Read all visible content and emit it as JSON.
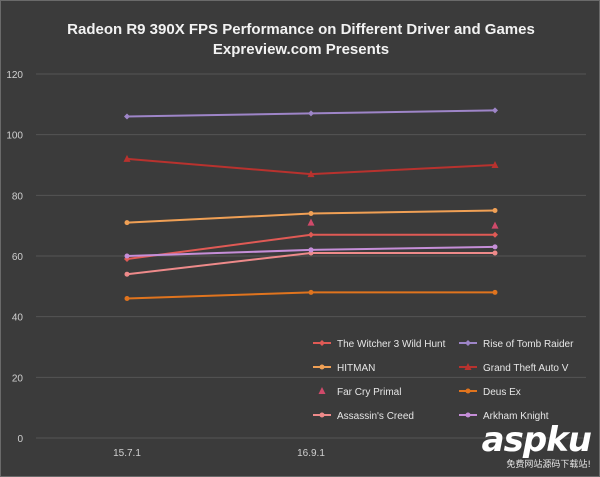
{
  "chart_data": {
    "type": "line",
    "title": "Radeon R9 390X FPS  Performance on Different Driver and Games",
    "subtitle": "Expreview.com Presents",
    "categories": [
      "15.7.1",
      "16.9.1",
      ""
    ],
    "ylim": [
      0,
      120
    ],
    "yticks": [
      0,
      20,
      40,
      60,
      80,
      100,
      120
    ],
    "grid": true,
    "legend_position": "bottom-right",
    "series": [
      {
        "name": "The Witcher 3 Wild Hunt",
        "values": [
          59,
          67,
          67
        ],
        "color": "#e05a55",
        "marker": "diamond",
        "line": true
      },
      {
        "name": "Rise of Tomb Raider",
        "values": [
          106,
          107,
          108
        ],
        "color": "#9e85c8",
        "marker": "diamond",
        "line": true
      },
      {
        "name": "HITMAN",
        "values": [
          71,
          74,
          75
        ],
        "color": "#f0a055",
        "marker": "circle",
        "line": true
      },
      {
        "name": "Grand Theft Auto V",
        "values": [
          92,
          87,
          90
        ],
        "color": "#b8322e",
        "marker": "triangle",
        "line": true
      },
      {
        "name": "Far Cry Primal",
        "values": [
          null,
          71,
          70
        ],
        "color": "#d04a6a",
        "marker": "triangle",
        "line": false
      },
      {
        "name": "Deus Ex",
        "values": [
          46,
          48,
          48
        ],
        "color": "#e0741e",
        "marker": "circle",
        "line": true
      },
      {
        "name": "Assassin's Creed",
        "values": [
          54,
          61,
          61
        ],
        "color": "#ee8a8a",
        "marker": "circle",
        "line": true
      },
      {
        "name": "Arkham Knight",
        "values": [
          60,
          62,
          63
        ],
        "color": "#c58ed8",
        "marker": "circle",
        "line": true
      }
    ]
  },
  "watermark": {
    "main": "aspku",
    "sub": "免费网站源码下载站!"
  }
}
